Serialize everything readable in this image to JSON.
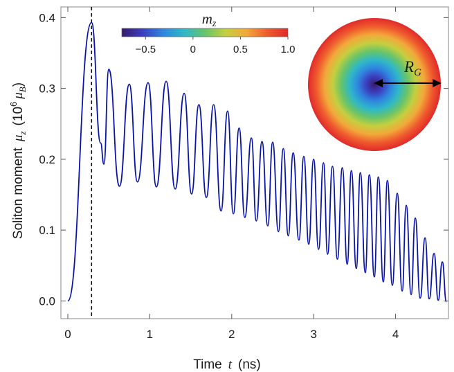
{
  "chart_data": {
    "type": "line",
    "xlabel": {
      "text": "Time",
      "var": "t",
      "unit": "(ns)"
    },
    "ylabel": {
      "text": "Soliton moment",
      "var": "μ",
      "var_sub": "z",
      "unit_pre": "(10",
      "unit_sup": "6",
      "unit_sym": "μ",
      "unit_sub": "B",
      "unit_post": ")"
    },
    "xlim": [
      0,
      4.62
    ],
    "ylim": [
      -0.025,
      0.415
    ],
    "xticks": [
      0,
      1,
      2,
      3,
      4
    ],
    "yticks": [
      0.0,
      0.1,
      0.2,
      0.3,
      0.4
    ],
    "xtick_labels": [
      "0",
      "1",
      "2",
      "3",
      "4"
    ],
    "ytick_labels": [
      "0.0",
      "0.1",
      "0.2",
      "0.3",
      "0.4"
    ],
    "vline_x": 0.29,
    "series": [
      {
        "color": "#0a14a8",
        "peaks": [
          [
            0.29,
            0.393
          ],
          [
            0.5,
            0.327
          ],
          [
            0.75,
            0.306
          ],
          [
            0.98,
            0.308
          ],
          [
            1.2,
            0.31
          ],
          [
            1.42,
            0.293
          ],
          [
            1.6,
            0.277
          ],
          [
            1.78,
            0.277
          ],
          [
            1.95,
            0.268
          ],
          [
            2.09,
            0.244
          ],
          [
            2.24,
            0.23
          ],
          [
            2.37,
            0.225
          ],
          [
            2.5,
            0.224
          ],
          [
            2.63,
            0.215
          ],
          [
            2.75,
            0.209
          ],
          [
            2.88,
            0.204
          ],
          [
            3.0,
            0.2
          ],
          [
            3.12,
            0.195
          ],
          [
            3.23,
            0.19
          ],
          [
            3.35,
            0.188
          ],
          [
            3.46,
            0.184
          ],
          [
            3.57,
            0.181
          ],
          [
            3.68,
            0.178
          ],
          [
            3.79,
            0.175
          ],
          [
            3.9,
            0.17
          ],
          [
            4.02,
            0.152
          ],
          [
            4.13,
            0.135
          ],
          [
            4.24,
            0.117
          ],
          [
            4.36,
            0.089
          ],
          [
            4.47,
            0.067
          ],
          [
            4.57,
            0.055
          ]
        ],
        "troughs": [
          [
            0.4,
            0.223
          ],
          [
            0.44,
            0.193
          ],
          [
            0.63,
            0.162
          ],
          [
            0.85,
            0.168
          ],
          [
            1.08,
            0.161
          ],
          [
            1.31,
            0.158
          ],
          [
            1.51,
            0.151
          ],
          [
            1.69,
            0.146
          ],
          [
            1.87,
            0.127
          ],
          [
            2.02,
            0.123
          ],
          [
            2.16,
            0.118
          ],
          [
            2.3,
            0.113
          ],
          [
            2.44,
            0.106
          ],
          [
            2.57,
            0.098
          ],
          [
            2.69,
            0.092
          ],
          [
            2.82,
            0.086
          ],
          [
            2.94,
            0.08
          ],
          [
            3.06,
            0.073
          ],
          [
            3.17,
            0.066
          ],
          [
            3.29,
            0.059
          ],
          [
            3.41,
            0.052
          ],
          [
            3.52,
            0.046
          ],
          [
            3.63,
            0.04
          ],
          [
            3.74,
            0.034
          ],
          [
            3.85,
            0.027
          ],
          [
            3.96,
            0.022
          ],
          [
            4.08,
            0.014
          ],
          [
            4.19,
            0.009
          ],
          [
            4.3,
            0.004
          ],
          [
            4.41,
            0.003
          ],
          [
            4.52,
            0.001
          ],
          [
            4.62,
            -0.001
          ]
        ]
      }
    ],
    "colorbar": {
      "label_var": "m",
      "label_sub": "z",
      "range": [
        -0.75,
        1.0
      ],
      "ticks": [
        -0.5,
        0,
        0.5,
        1.0
      ],
      "tick_labels": [
        "−0.5",
        "0",
        "0.5",
        "1.0"
      ],
      "colors": [
        "#3a1a6e",
        "#3b3fbf",
        "#2f86e0",
        "#2fb8c8",
        "#67c46a",
        "#c4cf3f",
        "#f2a93a",
        "#ef5b2e",
        "#e02a2a"
      ]
    },
    "inset": {
      "annotation_var": "R",
      "annotation_sub": "G"
    }
  }
}
